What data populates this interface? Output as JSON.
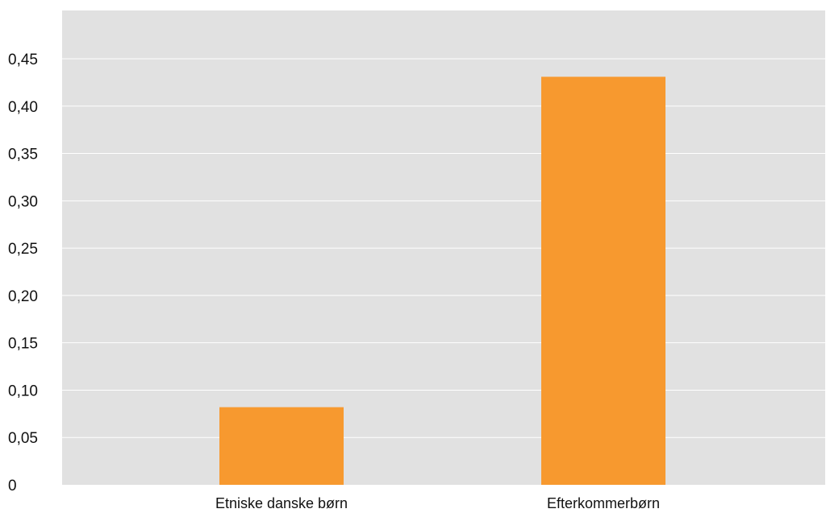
{
  "chart_data": {
    "type": "bar",
    "categories": [
      "Etniske danske børn",
      "Efterkommerbørn"
    ],
    "values": [
      0.082,
      0.431
    ],
    "ylim": [
      0,
      0.5
    ],
    "yticks": [
      0,
      0.05,
      0.1,
      0.15,
      0.2,
      0.25,
      0.3,
      0.35,
      0.4,
      0.45
    ],
    "ytick_labels": [
      "0",
      "0,05",
      "0,10",
      "0,15",
      "0,20",
      "0,25",
      "0,30",
      "0,35",
      "0,40",
      "0,45"
    ],
    "grid": true,
    "legend": "none",
    "title": "",
    "xlabel": "",
    "ylabel": "",
    "colors": {
      "bar": "#f7992f",
      "plot_background": "#e1e1e1",
      "gridline": "#ffffff",
      "text": "#111111"
    }
  }
}
